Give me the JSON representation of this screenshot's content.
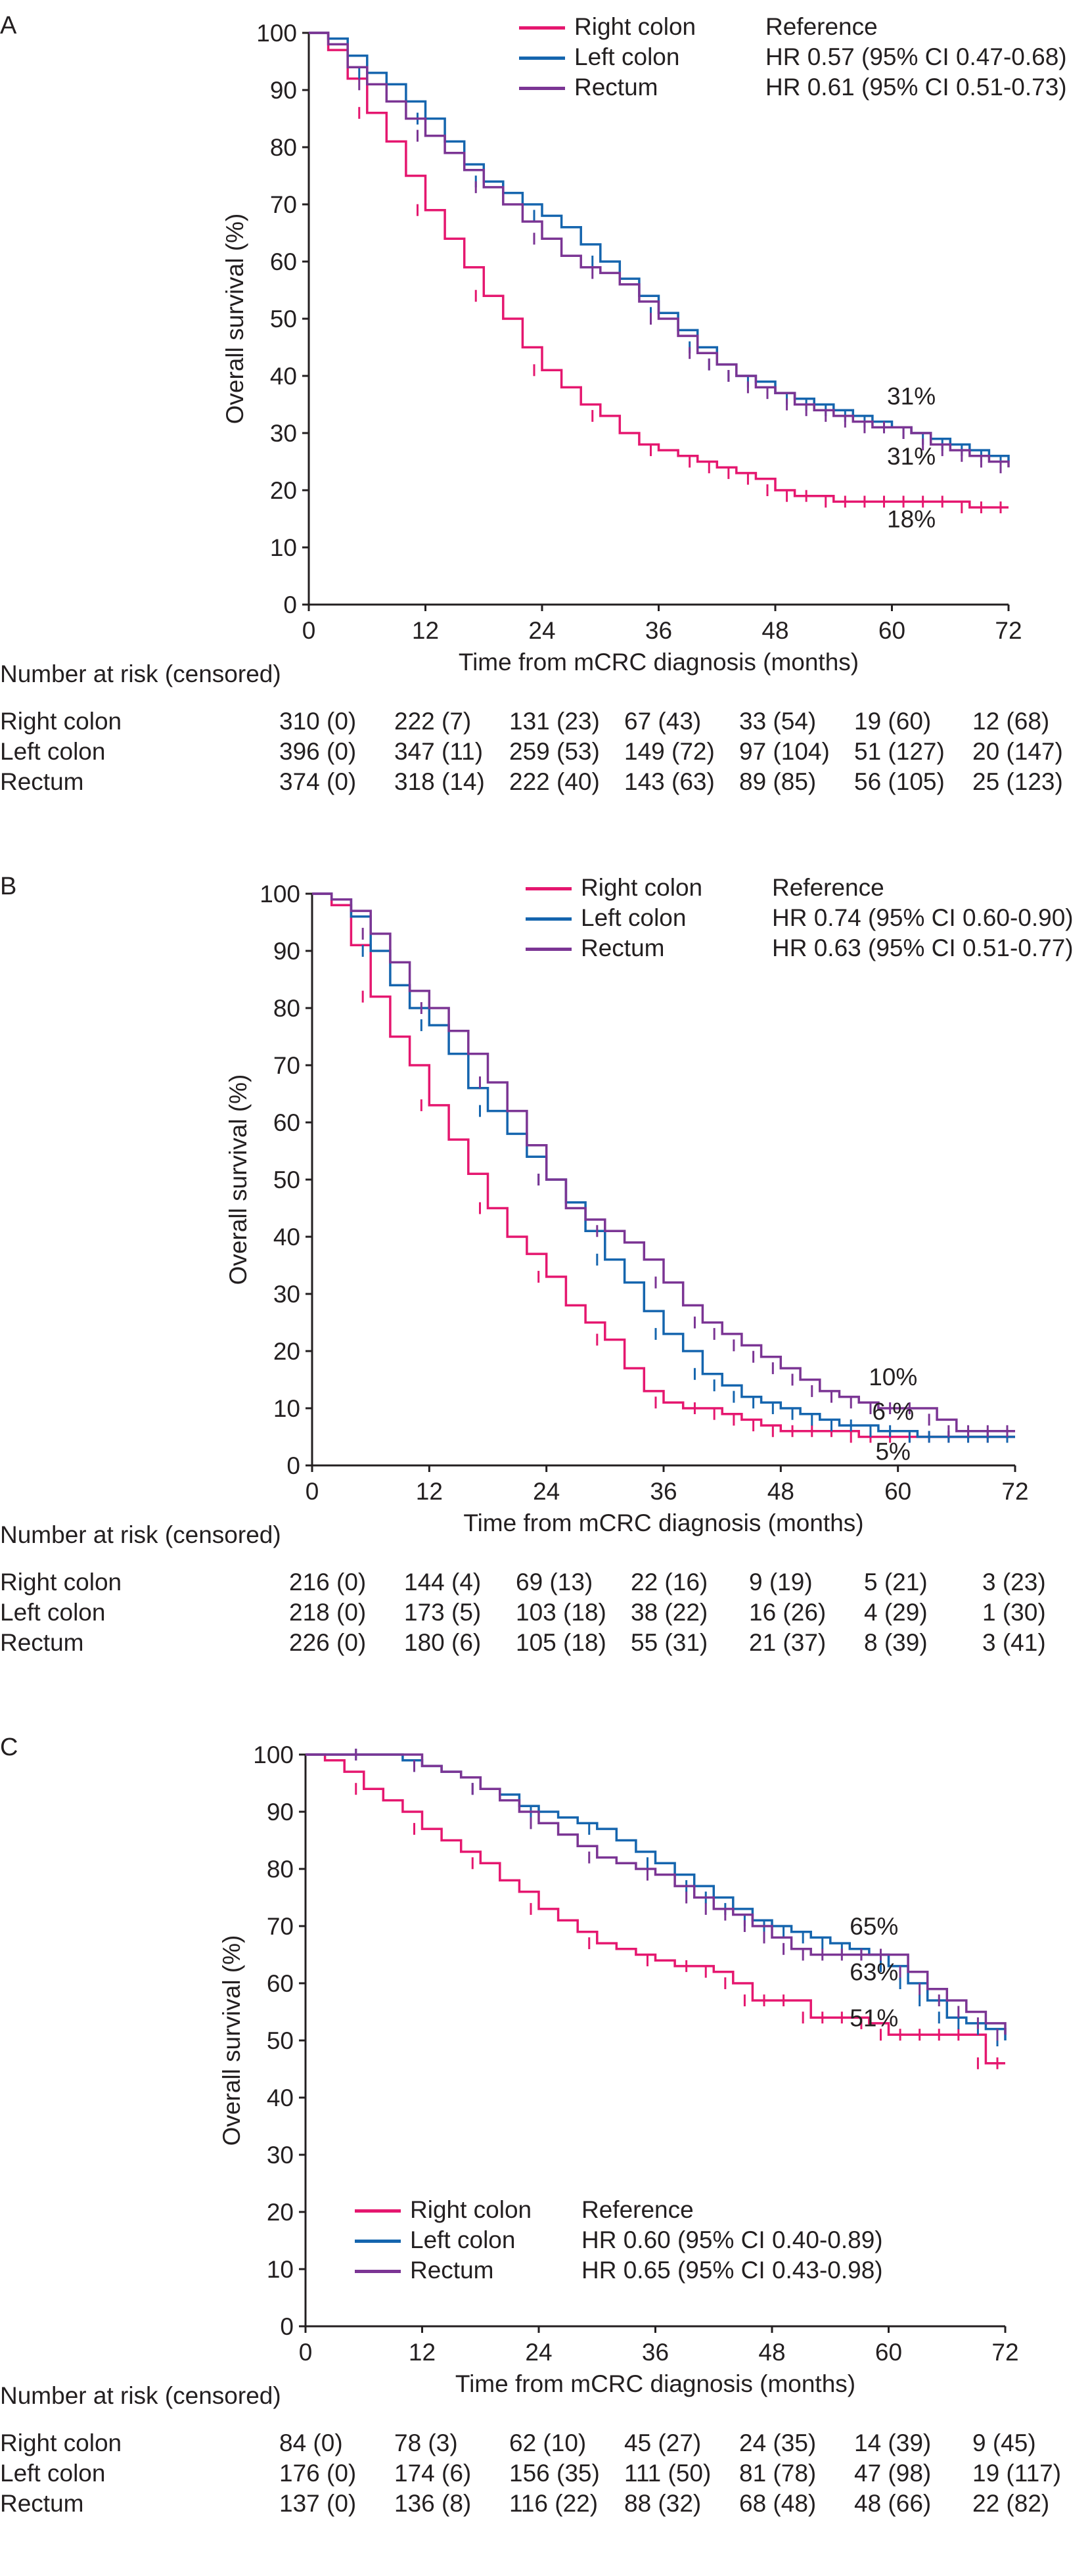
{
  "colors": {
    "right": "#e5176f",
    "left": "#1565ae",
    "rectum": "#7b3594",
    "axis": "#231f20"
  },
  "chart_data": [
    {
      "panel": "A",
      "type": "line",
      "title": "",
      "xlabel": "Time from mCRC diagnosis (months)",
      "ylabel": "Overall survival (%)",
      "xlim": [
        0,
        72
      ],
      "ylim": [
        0,
        100
      ],
      "xticks": [
        0,
        12,
        24,
        36,
        48,
        60,
        72
      ],
      "yticks": [
        0,
        10,
        20,
        30,
        40,
        50,
        60,
        70,
        80,
        90,
        100
      ],
      "legend": [
        {
          "name": "Right colon",
          "hr": "Reference"
        },
        {
          "name": "Left colon",
          "hr": "HR 0.57 (95% CI 0.47-0.68)"
        },
        {
          "name": "Rectum",
          "hr": "HR 0.61 (95% CI 0.51-0.73)"
        }
      ],
      "series": [
        {
          "name": "Right colon",
          "x": [
            0,
            2,
            4,
            6,
            8,
            10,
            12,
            14,
            16,
            18,
            20,
            22,
            24,
            26,
            28,
            30,
            32,
            34,
            36,
            38,
            40,
            42,
            44,
            46,
            48,
            50,
            52,
            54,
            56,
            58,
            60,
            62,
            64,
            66,
            68,
            70,
            72
          ],
          "values": [
            100,
            97,
            92,
            86,
            81,
            75,
            69,
            64,
            59,
            54,
            50,
            45,
            41,
            38,
            35,
            33,
            30,
            28,
            27,
            26,
            25,
            24,
            23,
            22,
            20,
            19,
            19,
            18,
            18,
            18,
            18,
            18,
            18,
            18,
            17,
            17,
            17
          ]
        },
        {
          "name": "Left colon",
          "x": [
            0,
            2,
            4,
            6,
            8,
            10,
            12,
            14,
            16,
            18,
            20,
            22,
            24,
            26,
            28,
            30,
            32,
            34,
            36,
            38,
            40,
            42,
            44,
            46,
            48,
            50,
            52,
            54,
            56,
            58,
            60,
            62,
            64,
            66,
            68,
            70,
            72
          ],
          "values": [
            100,
            99,
            96,
            93,
            91,
            88,
            85,
            81,
            77,
            74,
            72,
            70,
            68,
            66,
            63,
            60,
            57,
            54,
            51,
            48,
            45,
            42,
            40,
            39,
            37,
            36,
            35,
            34,
            33,
            32,
            31,
            30,
            29,
            28,
            27,
            26,
            25
          ]
        },
        {
          "name": "Rectum",
          "x": [
            0,
            2,
            4,
            6,
            8,
            10,
            12,
            14,
            16,
            18,
            20,
            22,
            24,
            26,
            28,
            30,
            32,
            34,
            36,
            38,
            40,
            42,
            44,
            46,
            48,
            50,
            52,
            54,
            56,
            58,
            60,
            62,
            64,
            66,
            68,
            70,
            72
          ],
          "values": [
            100,
            98,
            94,
            91,
            88,
            85,
            82,
            79,
            76,
            73,
            70,
            67,
            64,
            61,
            59,
            58,
            56,
            53,
            50,
            47,
            44,
            42,
            40,
            38,
            37,
            35,
            34,
            33,
            32,
            31,
            31,
            30,
            28,
            27,
            26,
            25,
            24
          ]
        }
      ],
      "annotations": [
        {
          "text": "31%",
          "x": 62,
          "y": 35
        },
        {
          "text": "31%",
          "x": 62,
          "y": 24.5
        },
        {
          "text": "18%",
          "x": 62,
          "y": 13.5
        }
      ],
      "risk_table": {
        "title": "Number at risk (censored)",
        "rows": [
          {
            "label": "Right colon",
            "values": [
              "310 (0)",
              "222 (7)",
              "131 (23)",
              "67 (43)",
              "33 (54)",
              "19 (60)",
              "12 (68)"
            ]
          },
          {
            "label": "Left colon",
            "values": [
              "396 (0)",
              "347 (11)",
              "259 (53)",
              "149 (72)",
              "97 (104)",
              "51 (127)",
              "20 (147)"
            ]
          },
          {
            "label": "Rectum",
            "values": [
              "374 (0)",
              "318 (14)",
              "222 (40)",
              "143 (63)",
              "89 (85)",
              "56 (105)",
              "25 (123)"
            ]
          }
        ]
      }
    },
    {
      "panel": "B",
      "type": "line",
      "title": "",
      "xlabel": "Time from mCRC diagnosis (months)",
      "ylabel": "Overall survival (%)",
      "xlim": [
        0,
        72
      ],
      "ylim": [
        0,
        100
      ],
      "xticks": [
        0,
        12,
        24,
        36,
        48,
        60,
        72
      ],
      "yticks": [
        0,
        10,
        20,
        30,
        40,
        50,
        60,
        70,
        80,
        90,
        100
      ],
      "legend": [
        {
          "name": "Right colon",
          "hr": "Reference"
        },
        {
          "name": "Left colon",
          "hr": "HR 0.74 (95% CI 0.60-0.90)"
        },
        {
          "name": "Rectum",
          "hr": "HR 0.63 (95% CI 0.51-0.77)"
        }
      ],
      "series": [
        {
          "name": "Right colon",
          "x": [
            0,
            2,
            4,
            6,
            8,
            10,
            12,
            14,
            16,
            18,
            20,
            22,
            24,
            26,
            28,
            30,
            32,
            34,
            36,
            38,
            40,
            42,
            44,
            46,
            48,
            50,
            52,
            54,
            56,
            58,
            60,
            62,
            64,
            66,
            68,
            70,
            72
          ],
          "values": [
            100,
            98,
            91,
            82,
            75,
            70,
            63,
            57,
            51,
            45,
            40,
            37,
            33,
            28,
            25,
            22,
            17,
            13,
            11,
            10,
            10,
            9,
            8,
            7,
            6,
            6,
            6,
            6,
            5,
            5,
            5,
            5,
            5,
            5,
            5,
            5,
            5
          ]
        },
        {
          "name": "Left colon",
          "x": [
            0,
            2,
            4,
            6,
            8,
            10,
            12,
            14,
            16,
            18,
            20,
            22,
            24,
            26,
            28,
            30,
            32,
            34,
            36,
            38,
            40,
            42,
            44,
            46,
            48,
            50,
            52,
            54,
            56,
            58,
            60,
            62,
            64,
            66,
            68,
            70,
            72
          ],
          "values": [
            100,
            99,
            96,
            90,
            84,
            80,
            77,
            72,
            66,
            62,
            58,
            54,
            50,
            46,
            41,
            36,
            32,
            27,
            23,
            20,
            16,
            14,
            12,
            11,
            10,
            9,
            8,
            7,
            7,
            6,
            6,
            5,
            5,
            5,
            5,
            5,
            5
          ]
        },
        {
          "name": "Rectum",
          "x": [
            0,
            2,
            4,
            6,
            8,
            10,
            12,
            14,
            16,
            18,
            20,
            22,
            24,
            26,
            28,
            30,
            32,
            34,
            36,
            38,
            40,
            42,
            44,
            46,
            48,
            50,
            52,
            54,
            56,
            58,
            60,
            62,
            64,
            66,
            68,
            70,
            72
          ],
          "values": [
            100,
            99,
            97,
            93,
            88,
            83,
            80,
            76,
            72,
            67,
            62,
            56,
            50,
            45,
            43,
            41,
            39,
            36,
            32,
            28,
            25,
            23,
            21,
            19,
            17,
            15,
            13,
            12,
            11,
            10,
            10,
            10,
            8,
            6,
            6,
            6,
            6
          ]
        }
      ],
      "annotations": [
        {
          "text": "10%",
          "x": 59.5,
          "y": 14
        },
        {
          "text": "6 %",
          "x": 59.5,
          "y": 8
        },
        {
          "text": "5%",
          "x": 59.5,
          "y": 1
        }
      ],
      "risk_table": {
        "title": "Number at risk (censored)",
        "rows": [
          {
            "label": "Right colon",
            "values": [
              "216 (0)",
              "144 (4)",
              "69 (13)",
              "22 (16)",
              "9 (19)",
              "5 (21)",
              "3 (23)"
            ]
          },
          {
            "label": "Left colon",
            "values": [
              "218 (0)",
              "173 (5)",
              "103 (18)",
              "38 (22)",
              "16 (26)",
              "4 (29)",
              "1 (30)"
            ]
          },
          {
            "label": "Rectum",
            "values": [
              "226 (0)",
              "180 (6)",
              "105 (18)",
              "55 (31)",
              "21 (37)",
              "8 (39)",
              "3 (41)"
            ]
          }
        ]
      }
    },
    {
      "panel": "C",
      "type": "line",
      "title": "",
      "xlabel": "Time from mCRC diagnosis (months)",
      "ylabel": "Overall survival (%)",
      "xlim": [
        0,
        72
      ],
      "ylim": [
        0,
        100
      ],
      "xticks": [
        0,
        12,
        24,
        36,
        48,
        60,
        72
      ],
      "yticks": [
        0,
        10,
        20,
        30,
        40,
        50,
        60,
        70,
        80,
        90,
        100
      ],
      "legend": [
        {
          "name": "Right colon",
          "hr": "Reference"
        },
        {
          "name": "Left colon",
          "hr": "HR 0.60 (95% CI 0.40-0.89)"
        },
        {
          "name": "Rectum",
          "hr": "HR 0.65 (95% CI 0.43-0.98)"
        }
      ],
      "series": [
        {
          "name": "Right colon",
          "x": [
            0,
            2,
            4,
            6,
            8,
            10,
            12,
            14,
            16,
            18,
            20,
            22,
            24,
            26,
            28,
            30,
            32,
            34,
            36,
            38,
            40,
            42,
            44,
            46,
            48,
            50,
            52,
            54,
            56,
            58,
            60,
            62,
            64,
            66,
            68,
            70,
            72
          ],
          "values": [
            100,
            99,
            97,
            94,
            92,
            90,
            87,
            85,
            83,
            81,
            78,
            76,
            73,
            71,
            69,
            67,
            66,
            65,
            64,
            63,
            63,
            62,
            60,
            57,
            57,
            57,
            54,
            54,
            54,
            53,
            51,
            51,
            51,
            51,
            51,
            46,
            46
          ]
        },
        {
          "name": "Left colon",
          "x": [
            0,
            2,
            4,
            6,
            8,
            10,
            12,
            14,
            16,
            18,
            20,
            22,
            24,
            26,
            28,
            30,
            32,
            34,
            36,
            38,
            40,
            42,
            44,
            46,
            48,
            50,
            52,
            54,
            56,
            58,
            60,
            62,
            64,
            66,
            68,
            70,
            72
          ],
          "values": [
            100,
            100,
            100,
            100,
            100,
            99,
            98,
            97,
            96,
            94,
            93,
            91,
            90,
            89,
            88,
            87,
            85,
            83,
            81,
            79,
            77,
            75,
            73,
            71,
            70,
            69,
            68,
            67,
            66,
            65,
            63,
            60,
            57,
            54,
            53,
            52,
            50
          ]
        },
        {
          "name": "Rectum",
          "x": [
            0,
            2,
            4,
            6,
            8,
            10,
            12,
            14,
            16,
            18,
            20,
            22,
            24,
            26,
            28,
            30,
            32,
            34,
            36,
            38,
            40,
            42,
            44,
            46,
            48,
            50,
            52,
            54,
            56,
            58,
            60,
            62,
            64,
            66,
            68,
            70,
            72
          ],
          "values": [
            100,
            100,
            100,
            100,
            100,
            100,
            98,
            97,
            96,
            94,
            92,
            90,
            88,
            86,
            84,
            82,
            81,
            80,
            79,
            77,
            75,
            73,
            72,
            70,
            68,
            66,
            65,
            65,
            65,
            65,
            65,
            62,
            59,
            57,
            55,
            53,
            51
          ]
        }
      ],
      "annotations": [
        {
          "text": "65%",
          "x": 58.5,
          "y": 68.5
        },
        {
          "text": "63%",
          "x": 58.5,
          "y": 60.5
        },
        {
          "text": "51%",
          "x": 58.5,
          "y": 52.5
        }
      ],
      "risk_table": {
        "title": "Number at risk (censored)",
        "rows": [
          {
            "label": "Right colon",
            "values": [
              "84 (0)",
              "78 (3)",
              "62 (10)",
              "45 (27)",
              "24 (35)",
              "14 (39)",
              "9 (45)"
            ]
          },
          {
            "label": "Left colon",
            "values": [
              "176 (0)",
              "174 (6)",
              "156 (35)",
              "111 (50)",
              "81 (78)",
              "47 (98)",
              "19 (117)"
            ]
          },
          {
            "label": "Rectum",
            "values": [
              "137 (0)",
              "136 (8)",
              "116 (22)",
              "88 (32)",
              "68 (48)",
              "48 (66)",
              "22 (82)"
            ]
          }
        ]
      }
    }
  ]
}
